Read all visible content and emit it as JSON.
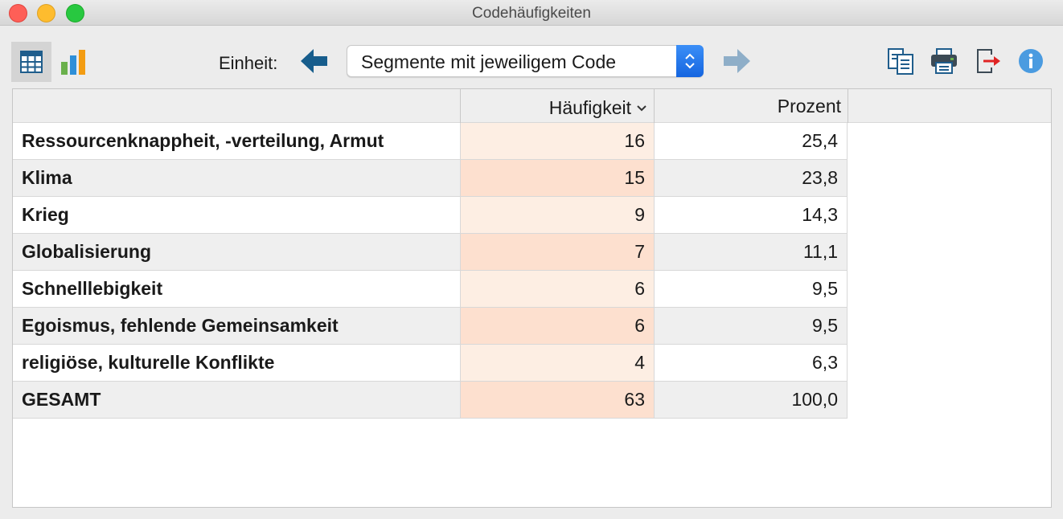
{
  "window": {
    "title": "Codehäufigkeiten"
  },
  "toolbar": {
    "view_table_icon": "table-grid-icon",
    "view_chart_icon": "bar-chart-icon",
    "unit_label": "Einheit:",
    "unit_select_value": "Segmente mit jeweiligem Code",
    "copy_icon": "copy-icon",
    "print_icon": "printer-icon",
    "export_icon": "export-icon",
    "info_icon": "info-icon"
  },
  "colors": {
    "accent_blue": "#1f6fe8",
    "arrow_dark": "#175d8c",
    "arrow_light": "#8eaec8",
    "freq_cell_light": "#fdeee3",
    "freq_cell_dark": "#fde0cf"
  },
  "table": {
    "headers": {
      "name": "",
      "frequency": "Häufigkeit",
      "percent": "Prozent"
    },
    "rows": [
      {
        "name": "Ressourcenknappheit, -verteilung, Armut",
        "frequency": "16",
        "percent": "25,4"
      },
      {
        "name": "Klima",
        "frequency": "15",
        "percent": "23,8"
      },
      {
        "name": "Krieg",
        "frequency": "9",
        "percent": "14,3"
      },
      {
        "name": "Globalisierung",
        "frequency": "7",
        "percent": "11,1"
      },
      {
        "name": "Schnelllebigkeit",
        "frequency": "6",
        "percent": "9,5"
      },
      {
        "name": "Egoismus, fehlende Gemeinsamkeit",
        "frequency": "6",
        "percent": "9,5"
      },
      {
        "name": "religiöse, kulturelle Konflikte",
        "frequency": "4",
        "percent": "6,3"
      },
      {
        "name": "GESAMT",
        "frequency": "63",
        "percent": "100,0"
      }
    ]
  }
}
